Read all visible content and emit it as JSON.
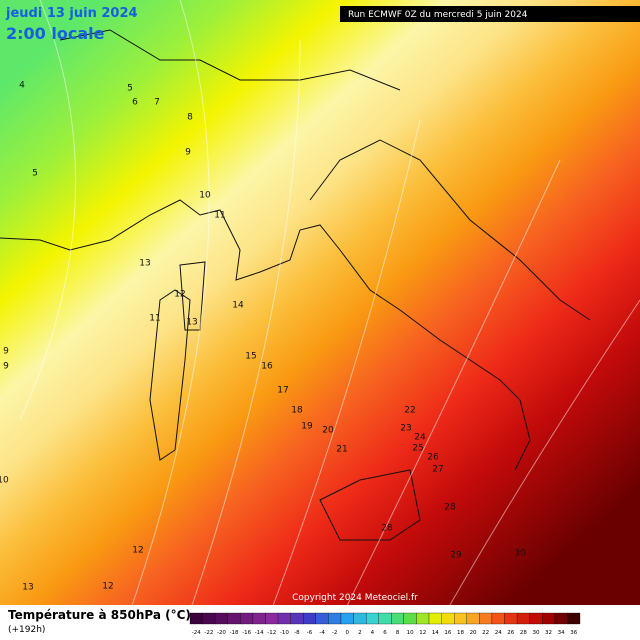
{
  "header": {
    "date": "jeudi 13 juin 2024",
    "time": "2:00 locale",
    "run": "Run ECMWF 0Z du mercredi 5 juin 2024"
  },
  "footer": {
    "title": "Température à 850hPa (°C)",
    "lead": "(+192h)",
    "copyright": "Copyright 2024 Meteociel.fr"
  },
  "contour_labels": [
    "4",
    "5",
    "6",
    "7",
    "8",
    "9",
    "10",
    "11",
    "13",
    "12",
    "11",
    "13",
    "14",
    "15",
    "16",
    "17",
    "18",
    "19",
    "20",
    "21",
    "22",
    "23",
    "24",
    "25",
    "26",
    "27",
    "28",
    "28",
    "29",
    "30",
    "5",
    "9",
    "9",
    "10",
    "12",
    "13",
    "12"
  ],
  "colorbar": {
    "ticks": [
      -24,
      -22,
      -20,
      -18,
      -16,
      -14,
      -12,
      -10,
      -8,
      -6,
      -4,
      -2,
      0,
      2,
      4,
      6,
      8,
      10,
      12,
      14,
      16,
      18,
      20,
      22,
      24,
      26,
      28,
      30,
      32,
      34,
      36
    ]
  }
}
